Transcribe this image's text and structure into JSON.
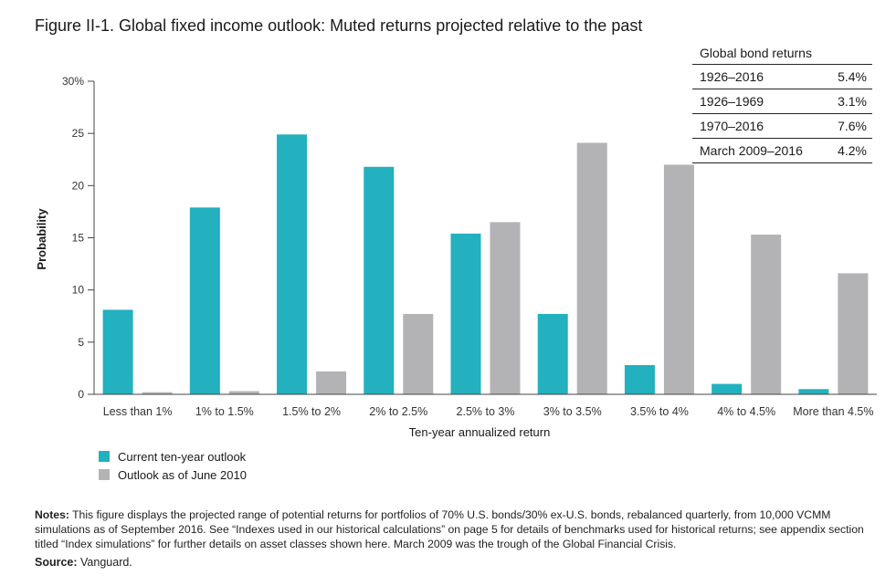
{
  "figure_title": "Figure II-1. Global fixed income outlook: Muted returns projected relative to the past",
  "chart_data": {
    "type": "bar",
    "title": "Figure II-1. Global fixed income outlook: Muted returns projected relative to the past",
    "xlabel": "Ten-year annualized return",
    "ylabel": "Probability",
    "ylim": [
      0,
      30
    ],
    "yticks": [
      0,
      5,
      10,
      15,
      20,
      25,
      30
    ],
    "ytick_labels": [
      "0",
      "5",
      "10",
      "15",
      "20",
      "25",
      "30%"
    ],
    "categories": [
      "Less than 1%",
      "1% to 1.5%",
      "1.5% to 2%",
      "2% to 2.5%",
      "2.5% to 3%",
      "3% to 3.5%",
      "3.5% to 4%",
      "4% to 4.5%",
      "More than 4.5%"
    ],
    "series": [
      {
        "name": "Current ten-year outlook",
        "color": "#23b0bf",
        "values": [
          8.1,
          17.9,
          24.9,
          21.8,
          15.4,
          7.7,
          2.8,
          1.0,
          0.5
        ]
      },
      {
        "name": "Outlook as of June 2010",
        "color": "#b3b3b5",
        "values": [
          0.2,
          0.3,
          2.2,
          7.7,
          16.5,
          24.1,
          22.0,
          15.3,
          11.6
        ]
      }
    ],
    "legend_position": "bottom-left",
    "grid": false
  },
  "bond_table": {
    "header": "Global bond returns",
    "rows": [
      {
        "period": "1926–2016",
        "value": "5.4%"
      },
      {
        "period": "1926–1969",
        "value": "3.1%"
      },
      {
        "period": "1970–2016",
        "value": "7.6%"
      },
      {
        "period": "March 2009–2016",
        "value": "4.2%"
      }
    ]
  },
  "notes": {
    "label": "Notes:",
    "text": "This figure displays the projected range of potential returns for portfolios of 70% U.S. bonds/30% ex-U.S. bonds, rebalanced quarterly, from 10,000 VCMM simulations as of September 2016. See “Indexes used in our historical calculations” on page 5 for details of benchmarks used for historical returns; see appendix section titled “Index simulations” for further details on asset classes shown here. March 2009 was the trough of the Global Financial Crisis."
  },
  "source": {
    "label": "Source:",
    "text": " Vanguard."
  }
}
